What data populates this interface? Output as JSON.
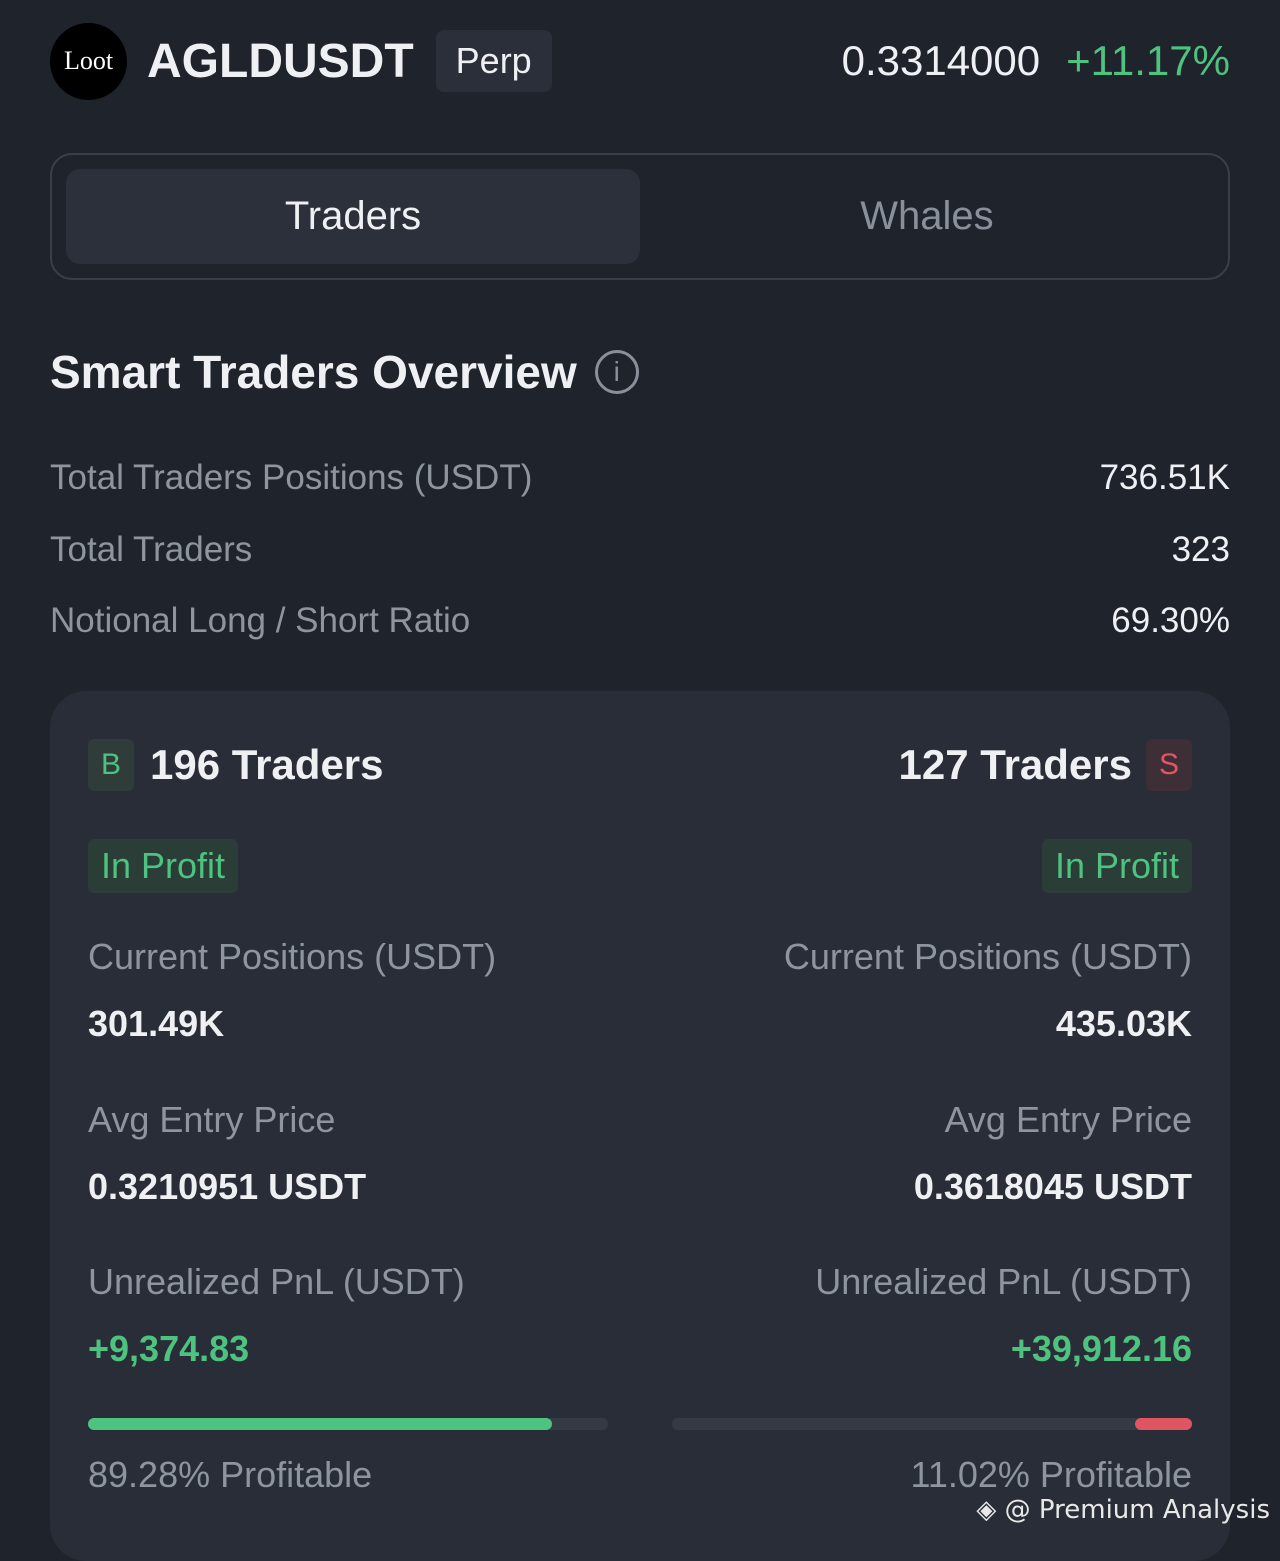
{
  "header": {
    "logo": "Loot",
    "symbol": "AGLDUSDT",
    "type": "Perp",
    "price": "0.3314000",
    "change": "+11.17%"
  },
  "tabs": [
    {
      "label": "Traders",
      "active": true
    },
    {
      "label": "Whales",
      "active": false
    }
  ],
  "overview": {
    "title": "Smart Traders Overview",
    "info_icon": "info-icon",
    "rows": [
      {
        "label": "Total Traders Positions (USDT)",
        "value": "736.51K"
      },
      {
        "label": "Total Traders",
        "value": "323"
      },
      {
        "label": "Notional Long / Short Ratio",
        "value": "69.30%"
      }
    ]
  },
  "long": {
    "badge": "B",
    "traders": "196 Traders",
    "status": "In Profit",
    "pos_label": "Current Positions (USDT)",
    "pos": "301.49K",
    "entry_label": "Avg Entry Price",
    "entry": "0.3210951 USDT",
    "pnl_label": "Unrealized PnL (USDT)",
    "pnl": "+9,374.83",
    "profitable_pct": 89.28,
    "profitable": "89.28% Profitable"
  },
  "short": {
    "badge": "S",
    "traders": "127 Traders",
    "status": "In Profit",
    "pos_label": "Current Positions (USDT)",
    "pos": "435.03K",
    "entry_label": "Avg Entry Price",
    "entry": "0.3618045 USDT",
    "pnl_label": "Unrealized PnL (USDT)",
    "pnl": "+39,912.16",
    "profitable_pct": 11.02,
    "profitable": "11.02% Profitable"
  },
  "colors": {
    "green": "#4ec27f",
    "red": "#e05561"
  },
  "watermark": "@ Premium Analysis"
}
